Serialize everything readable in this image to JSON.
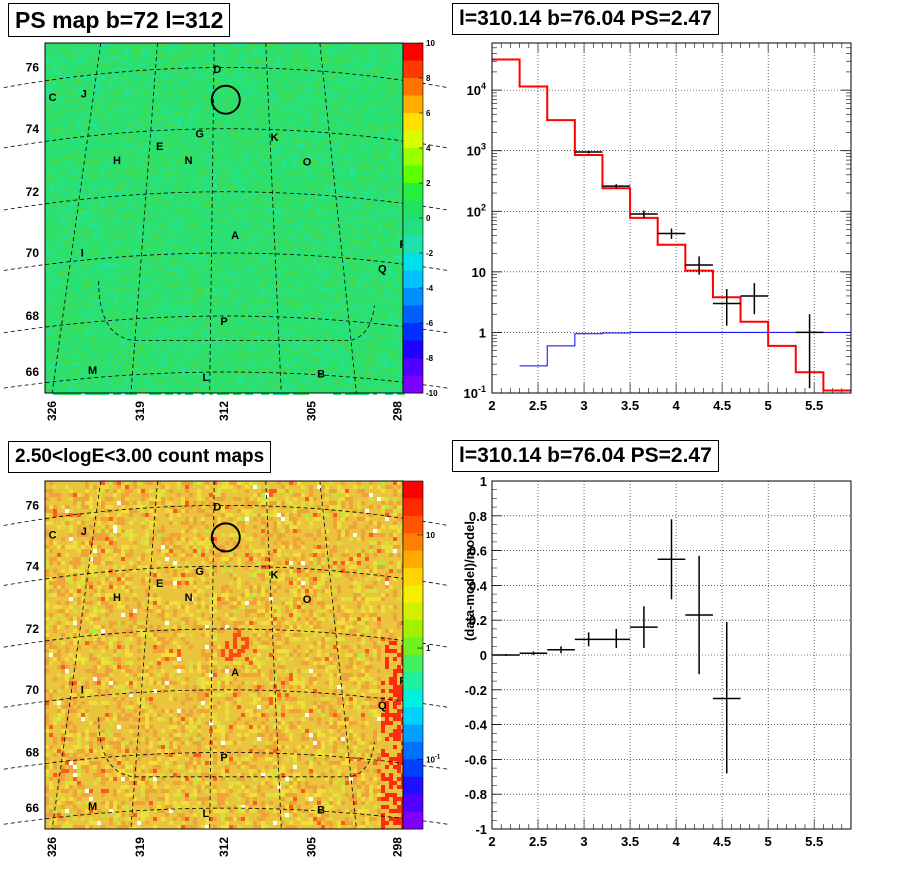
{
  "panels": {
    "ps_map_title": "PS map b=72 l=312",
    "spectrum_title": "l=310.14 b=76.04 PS=2.47",
    "count_map_title": "2.50<logE<3.00 count maps",
    "residual_title": "l=310.14 b=76.04 PS=2.47"
  },
  "sky_maps": {
    "lat_ticks": [
      "66",
      "68",
      "70",
      "72",
      "74",
      "76"
    ],
    "lon_ticks": [
      "326",
      "319",
      "312",
      "305",
      "298"
    ],
    "source_labels": [
      "A",
      "B",
      "C",
      "D",
      "E",
      "F",
      "G",
      "H",
      "I",
      "J",
      "K",
      "L",
      "M",
      "N",
      "O",
      "P",
      "Q"
    ],
    "ps_colorbar_ticks": [
      "10",
      "8",
      "6",
      "4",
      "2",
      "0",
      "-2",
      "-4",
      "-6",
      "-8",
      "-10"
    ],
    "count_colorbar_ticks": [
      "10",
      "1"
    ],
    "count_colorbar_minor": "10",
    "count_colorbar_minor_exp": "-1"
  },
  "chart_data": [
    {
      "type": "heatmap",
      "title": "PS map b=72 l=312",
      "ylim": [
        65.3,
        76.7
      ],
      "xlim": [
        326,
        298
      ],
      "colorbar_range": [
        -10,
        10
      ],
      "colors": {
        "background": "#3ddc5a",
        "mid": "#27e27a",
        "top": "#ff0000",
        "bottom": "#6a00ff"
      }
    },
    {
      "type": "line",
      "title": "l=310.14 b=76.04 PS=2.47",
      "y_scale": "log",
      "xlim": [
        2.0,
        5.9
      ],
      "ylim": [
        0.1,
        60000
      ],
      "x_ticks": [
        "2",
        "2.5",
        "3",
        "3.5",
        "4",
        "4.5",
        "5",
        "5.5"
      ],
      "y_tick_labels": [
        {
          "value": 0.1,
          "base": "10",
          "exp": "-1"
        },
        {
          "value": 1,
          "base": "1",
          "exp": ""
        },
        {
          "value": 10,
          "base": "10",
          "exp": ""
        },
        {
          "value": 100,
          "base": "10",
          "exp": "2"
        },
        {
          "value": 1000,
          "base": "10",
          "exp": "3"
        },
        {
          "value": 10000,
          "base": "10",
          "exp": "4"
        }
      ],
      "grid": true,
      "bin_edges": [
        2.0,
        2.3,
        2.6,
        2.9,
        3.2,
        3.5,
        3.8,
        4.1,
        4.4,
        4.7,
        5.0,
        5.3,
        5.6,
        5.9
      ],
      "model_red": [
        32000,
        11500,
        3200,
        850,
        240,
        78,
        28,
        10.5,
        3.8,
        1.5,
        0.6,
        0.22,
        0.11
      ],
      "model_blue": [
        null,
        0.28,
        0.6,
        0.95,
        0.98,
        1.0,
        1.0,
        1.0,
        1.0,
        1.0,
        1.0,
        1.0,
        1.0
      ],
      "data_points": [
        {
          "x": 3.05,
          "y": 950,
          "xerr": 0.15,
          "ylo": 900,
          "yhi": 1000
        },
        {
          "x": 3.35,
          "y": 260,
          "xerr": 0.15,
          "ylo": 240,
          "yhi": 280
        },
        {
          "x": 3.65,
          "y": 90,
          "xerr": 0.15,
          "ylo": 78,
          "yhi": 103
        },
        {
          "x": 3.95,
          "y": 43,
          "xerr": 0.15,
          "ylo": 35,
          "yhi": 52
        },
        {
          "x": 4.25,
          "y": 13,
          "xerr": 0.15,
          "ylo": 9,
          "yhi": 18
        },
        {
          "x": 4.55,
          "y": 3.0,
          "xerr": 0.15,
          "ylo": 1.3,
          "yhi": 5.2
        },
        {
          "x": 4.85,
          "y": 4.0,
          "xerr": 0.15,
          "ylo": 2.0,
          "yhi": 6.5
        },
        {
          "x": 5.45,
          "y": 1.0,
          "xerr": 0.15,
          "ylo": 0.12,
          "yhi": 2.0
        }
      ],
      "colors": {
        "model": "#ff0000",
        "background_model": "#0000ff",
        "data": "#000000"
      }
    },
    {
      "type": "heatmap",
      "title": "2.50<logE<3.00 count maps",
      "y_scale": "log",
      "ylim": [
        65.3,
        76.7
      ],
      "xlim": [
        326,
        298
      ],
      "colors": {
        "typical": "#e8c63a",
        "high": "#ff3c00",
        "low": "#ffffff"
      }
    },
    {
      "type": "scatter",
      "title": "l=310.14 b=76.04 PS=2.47",
      "ylabel": "(data-model)/model",
      "xlim": [
        2.0,
        5.9
      ],
      "ylim": [
        -1,
        1
      ],
      "x_ticks": [
        "2",
        "2.5",
        "3",
        "3.5",
        "4",
        "4.5",
        "5",
        "5.5"
      ],
      "y_ticks": [
        "-1",
        "-0.8",
        "-0.6",
        "-0.4",
        "-0.2",
        "0",
        "0.2",
        "0.4",
        "0.6",
        "0.8",
        "1"
      ],
      "grid": true,
      "points": [
        {
          "x": 2.15,
          "y": 0.0,
          "xerr": 0.15,
          "ylo": -0.005,
          "yhi": 0.005
        },
        {
          "x": 2.45,
          "y": 0.01,
          "xerr": 0.15,
          "ylo": 0.0,
          "yhi": 0.02
        },
        {
          "x": 2.75,
          "y": 0.03,
          "xerr": 0.15,
          "ylo": 0.01,
          "yhi": 0.05
        },
        {
          "x": 3.05,
          "y": 0.09,
          "xerr": 0.15,
          "ylo": 0.05,
          "yhi": 0.13
        },
        {
          "x": 3.35,
          "y": 0.09,
          "xerr": 0.15,
          "ylo": 0.04,
          "yhi": 0.15
        },
        {
          "x": 3.65,
          "y": 0.16,
          "xerr": 0.15,
          "ylo": 0.04,
          "yhi": 0.28
        },
        {
          "x": 3.95,
          "y": 0.55,
          "xerr": 0.15,
          "ylo": 0.32,
          "yhi": 0.78
        },
        {
          "x": 4.25,
          "y": 0.23,
          "xerr": 0.15,
          "ylo": -0.11,
          "yhi": 0.57
        },
        {
          "x": 4.55,
          "y": -0.25,
          "xerr": 0.15,
          "ylo": -0.68,
          "yhi": 0.19
        }
      ]
    }
  ]
}
